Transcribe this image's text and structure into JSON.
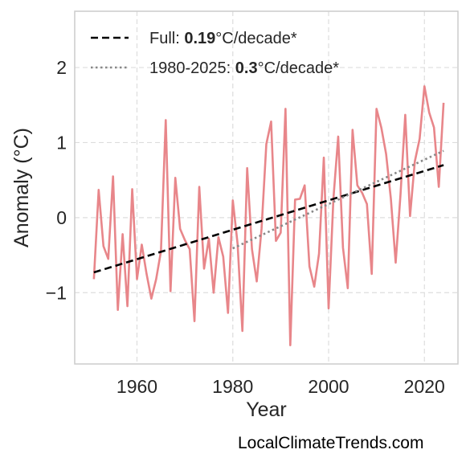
{
  "chart_data": {
    "type": "line",
    "xlabel": "Year",
    "ylabel": "Anomaly (°C)",
    "xlim": [
      1947,
      2027
    ],
    "ylim": [
      -1.95,
      2.75
    ],
    "xticks": [
      1960,
      1980,
      2000,
      2020
    ],
    "xtick_labels": [
      "1960",
      "1980",
      "2000",
      "2020"
    ],
    "yticks": [
      -1,
      0,
      1,
      2
    ],
    "ytick_labels": [
      "−1",
      "0",
      "1",
      "2"
    ],
    "grid": true,
    "legend_position": "top-left",
    "series": [
      {
        "style": "solid",
        "color": "#e8868a",
        "x": [
          1951,
          1952,
          1953,
          1954,
          1955,
          1956,
          1957,
          1958,
          1959,
          1960,
          1961,
          1962,
          1963,
          1964,
          1965,
          1966,
          1967,
          1968,
          1969,
          1970,
          1971,
          1972,
          1973,
          1974,
          1975,
          1976,
          1977,
          1978,
          1979,
          1980,
          1981,
          1982,
          1983,
          1984,
          1985,
          1986,
          1987,
          1988,
          1989,
          1990,
          1991,
          1992,
          1993,
          1994,
          1995,
          1996,
          1997,
          1998,
          1999,
          2000,
          2001,
          2002,
          2003,
          2004,
          2005,
          2006,
          2007,
          2008,
          2009,
          2010,
          2011,
          2012,
          2013,
          2014,
          2015,
          2016,
          2017,
          2018,
          2019,
          2020,
          2021,
          2022,
          2023,
          2024
        ],
        "y": [
          -0.82,
          0.37,
          -0.38,
          -0.55,
          0.55,
          -1.23,
          -0.22,
          -1.18,
          0.38,
          -0.82,
          -0.36,
          -0.75,
          -1.08,
          -0.82,
          -0.45,
          1.3,
          -0.98,
          0.53,
          -0.15,
          -0.3,
          -0.42,
          -1.38,
          0.41,
          -0.68,
          -0.28,
          -1.0,
          -0.26,
          -0.52,
          -1.27,
          0.23,
          -0.35,
          -1.51,
          0.66,
          -0.42,
          -0.85,
          -0.15,
          0.98,
          1.28,
          -0.31,
          -0.2,
          1.45,
          -1.7,
          0.24,
          0.25,
          0.43,
          -0.65,
          -0.92,
          -0.48,
          0.8,
          -1.21,
          0.25,
          1.08,
          -0.4,
          -0.94,
          1.17,
          0.43,
          0.33,
          0.18,
          -0.75,
          1.45,
          1.2,
          0.85,
          0.25,
          -0.6,
          0.3,
          1.37,
          0.02,
          0.75,
          1.05,
          1.75,
          1.4,
          1.2,
          0.41,
          1.53
        ]
      }
    ],
    "trends": [
      {
        "label": "Full:",
        "value": "0.19",
        "unit": "°C/decade*",
        "style": "dashed",
        "color": "#000000",
        "x": [
          1951,
          2024
        ],
        "y": [
          -0.73,
          0.7
        ]
      },
      {
        "label": "1980-2025:",
        "value": "0.3",
        "unit": "°C/decade*",
        "style": "dotted",
        "color": "#888888",
        "x": [
          1980,
          2024
        ],
        "y": [
          -0.41,
          0.89
        ]
      }
    ]
  },
  "legend": [
    {
      "prefix": "Full: ",
      "bold": "0.19",
      "suffix": "°C/decade*"
    },
    {
      "prefix": "1980-2025: ",
      "bold": "0.3",
      "suffix": "°C/decade*"
    }
  ],
  "source_text": "LocalClimateTrends.com"
}
